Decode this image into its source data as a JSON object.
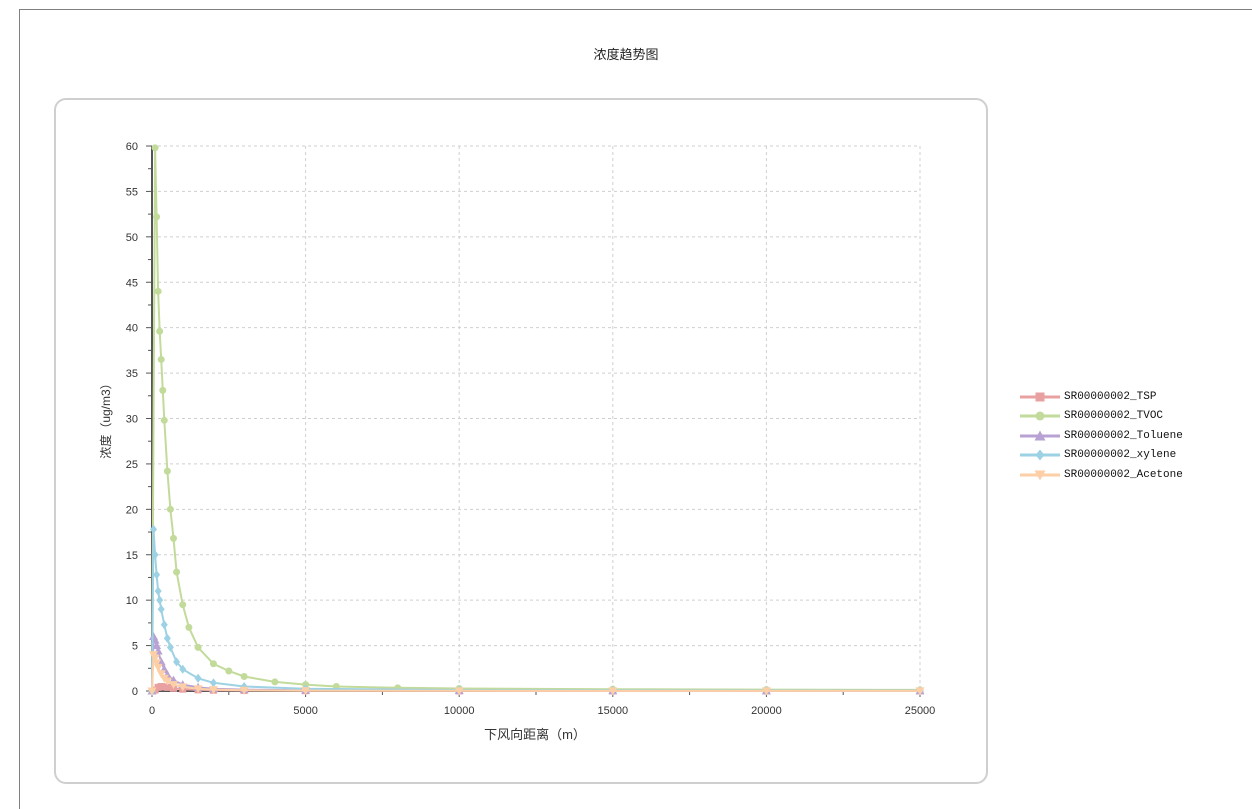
{
  "chart_data": {
    "type": "line",
    "title": "浓度趋势图",
    "xlabel": "下风向距离（m）",
    "ylabel": "浓度（ug/m3）",
    "xlim": [
      0,
      25000
    ],
    "ylim": [
      0,
      60
    ],
    "x_ticks": [
      0,
      5000,
      10000,
      15000,
      20000,
      25000
    ],
    "y_ticks": [
      0,
      5,
      10,
      15,
      20,
      25,
      30,
      35,
      40,
      45,
      50,
      55,
      60
    ],
    "grid": true,
    "legend_position": "right",
    "series": [
      {
        "name": "SR00000002_TSP",
        "color": "#e8a0a0",
        "marker": "square",
        "x": [
          0,
          100,
          200,
          300,
          400,
          500,
          700,
          1000,
          1500,
          2000,
          3000,
          5000,
          10000,
          15000,
          20000,
          25000
        ],
        "y": [
          0,
          0.1,
          0.4,
          0.5,
          0.45,
          0.4,
          0.3,
          0.2,
          0.12,
          0.08,
          0.05,
          0.03,
          0.01,
          0.0,
          0.0,
          0.0
        ]
      },
      {
        "name": "SR00000002_TVOC",
        "color": "#c2db9a",
        "marker": "circle",
        "x": [
          0,
          100,
          150,
          200,
          250,
          300,
          350,
          400,
          500,
          600,
          700,
          800,
          1000,
          1200,
          1500,
          2000,
          2500,
          3000,
          4000,
          5000,
          6000,
          8000,
          10000,
          15000,
          20000,
          25000
        ],
        "y": [
          0,
          59.8,
          52.2,
          44,
          39.6,
          36.5,
          33.1,
          29.8,
          24.2,
          20,
          16.8,
          13.1,
          9.5,
          7,
          4.8,
          3,
          2.2,
          1.6,
          1.0,
          0.7,
          0.5,
          0.35,
          0.28,
          0.2,
          0.15,
          0.12
        ]
      },
      {
        "name": "SR00000002_Toluene",
        "color": "#b8a2d4",
        "marker": "triangle",
        "x": [
          0,
          50,
          100,
          150,
          200,
          300,
          400,
          500,
          700,
          1000,
          1500,
          2000,
          3000,
          5000,
          10000,
          15000,
          20000,
          25000
        ],
        "y": [
          0,
          6,
          5.6,
          5,
          4.4,
          3.2,
          2.4,
          1.8,
          1.2,
          0.7,
          0.4,
          0.25,
          0.15,
          0.08,
          0.04,
          0.03,
          0.02,
          0.02
        ]
      },
      {
        "name": "SR00000002_xylene",
        "color": "#9dd1e4",
        "marker": "diamond",
        "x": [
          0,
          50,
          100,
          150,
          200,
          250,
          300,
          400,
          500,
          600,
          800,
          1000,
          1500,
          2000,
          3000,
          5000,
          10000,
          15000,
          20000,
          25000
        ],
        "y": [
          0,
          17.8,
          15,
          12.8,
          11,
          10,
          9,
          7.3,
          5.8,
          4.8,
          3.2,
          2.4,
          1.4,
          0.9,
          0.5,
          0.25,
          0.1,
          0.07,
          0.05,
          0.04
        ]
      },
      {
        "name": "SR00000002_Acetone",
        "color": "#fdcfa6",
        "marker": "triangle-down",
        "x": [
          0,
          50,
          100,
          150,
          200,
          300,
          400,
          500,
          700,
          1000,
          1500,
          2000,
          3000,
          5000,
          10000,
          15000,
          20000,
          25000
        ],
        "y": [
          0,
          4,
          3.6,
          3.1,
          2.6,
          1.9,
          1.4,
          1.1,
          0.7,
          0.45,
          0.25,
          0.15,
          0.08,
          0.04,
          0.02,
          0.01,
          0.01,
          0.01
        ]
      }
    ]
  }
}
